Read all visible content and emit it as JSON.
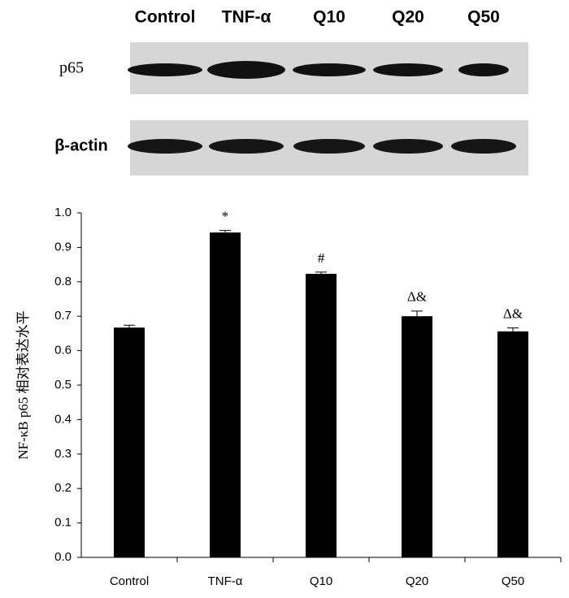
{
  "blot": {
    "lanes": [
      "Control",
      "TNF-α",
      "Q10",
      "Q20",
      "Q50"
    ],
    "rows": [
      "p65",
      "β-actin"
    ]
  },
  "chart_data": {
    "type": "bar",
    "y_label": "NF-κB p65 相对表达水平",
    "categories": [
      "Control",
      "TNF-α",
      "Q10",
      "Q20",
      "Q50"
    ],
    "values": [
      0.667,
      0.943,
      0.823,
      0.7,
      0.656
    ],
    "errors": [
      0.007,
      0.006,
      0.005,
      0.015,
      0.01
    ],
    "annotations": [
      null,
      "*",
      "#",
      "Δ&",
      "Δ&"
    ],
    "color": "#000000",
    "ylim": [
      0,
      1
    ],
    "yticks": [
      {
        "value": 0,
        "label": "0.0"
      },
      0.1,
      0.2,
      0.3,
      0.4,
      0.5,
      0.6,
      0.7,
      0.8,
      0.9,
      {
        "value": 1,
        "label": "1.0"
      }
    ],
    "grid": false
  }
}
